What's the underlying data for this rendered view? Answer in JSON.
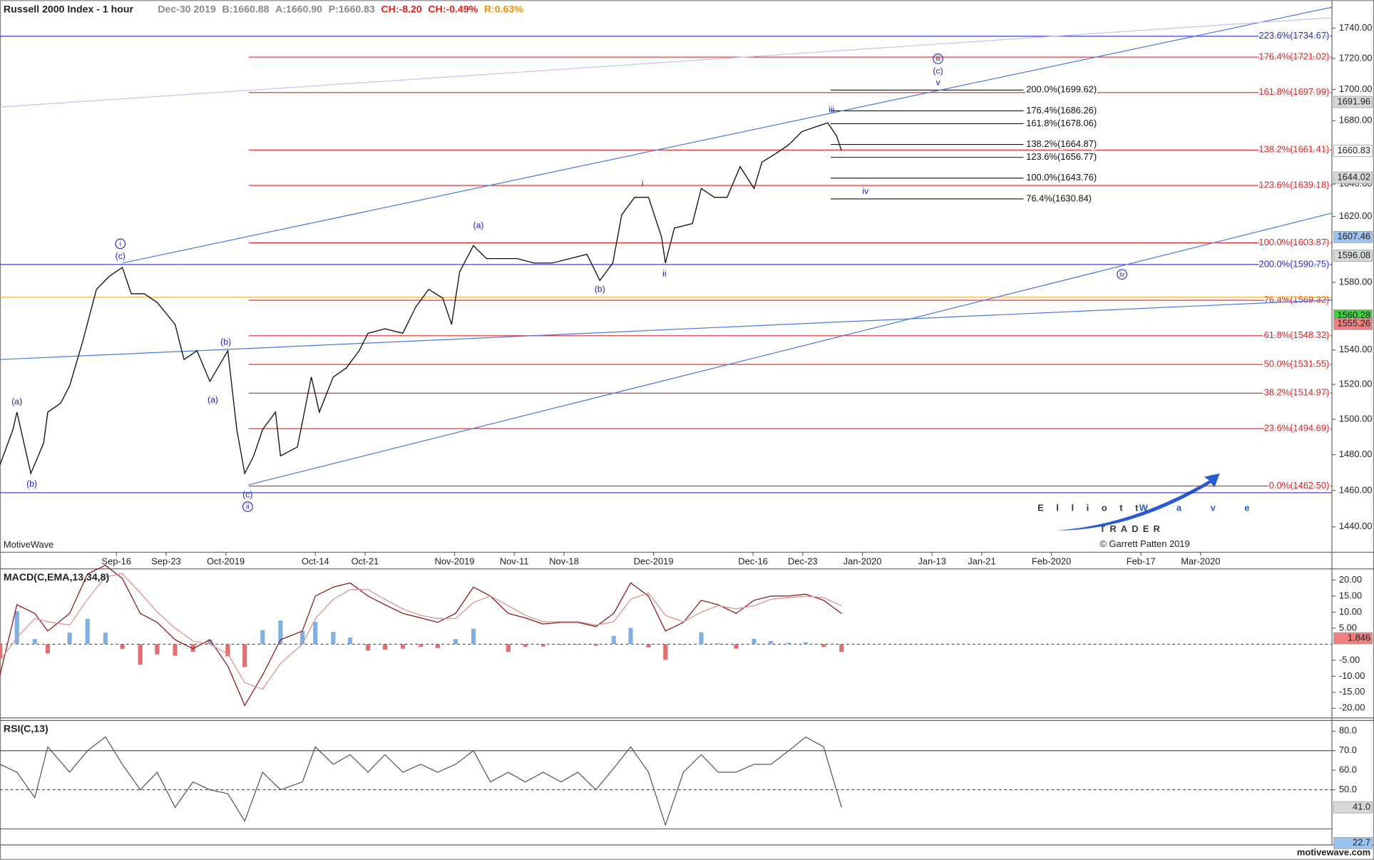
{
  "branding": {
    "platform": "MotiveWave",
    "copyright": "© Garrett Patten 2019",
    "site": "motivewave.com",
    "logo_a": "Elliott",
    "logo_b": "Wave",
    "logo_c": "TRADER"
  },
  "chart_data": [
    {
      "type": "line",
      "title": "Russell 2000 Index - 1 hour",
      "quote": [
        {
          "text": "Dec-30 2019",
          "color": "#888888"
        },
        {
          "text": "B:1660.88",
          "color": "#888888"
        },
        {
          "text": "A:1660.90",
          "color": "#888888"
        },
        {
          "text": "P:1660.83",
          "color": "#888888"
        },
        {
          "text": "CH:-8.20",
          "color": "#e02020"
        },
        {
          "text": "CH:-0.49%",
          "color": "#e02020"
        },
        {
          "text": "R:0.63%",
          "color": "#f09000"
        }
      ],
      "log_scale": true,
      "grid": false,
      "color": "#111111",
      "xlim": [
        -11.7,
        122.2
      ],
      "ylim": [
        1426.2,
        1758.6
      ],
      "xticks": [
        {
          "value": 0,
          "label": "Sep-16"
        },
        {
          "value": 5,
          "label": "Sep-23"
        },
        {
          "value": 11,
          "label": "Oct-2019"
        },
        {
          "value": 20,
          "label": "Oct-14"
        },
        {
          "value": 25,
          "label": "Oct-21"
        },
        {
          "value": 34,
          "label": "Nov-2019"
        },
        {
          "value": 40,
          "label": "Nov-11"
        },
        {
          "value": 45,
          "label": "Nov-18"
        },
        {
          "value": 54,
          "label": "Dec-2019"
        },
        {
          "value": 64,
          "label": "Dec-16"
        },
        {
          "value": 69,
          "label": "Dec-23"
        },
        {
          "value": 75,
          "label": "Jan-2020"
        },
        {
          "value": 82,
          "label": "Jan-13"
        },
        {
          "value": 87,
          "label": "Jan-21"
        },
        {
          "value": 94,
          "label": "Feb-2020"
        },
        {
          "value": 103,
          "label": "Feb-17"
        },
        {
          "value": 109,
          "label": "Mar-2020"
        }
      ],
      "yticks": [
        {
          "value": 1440,
          "label": "1440.00"
        },
        {
          "value": 1460,
          "label": "1460.00"
        },
        {
          "value": 1480,
          "label": "1480.00"
        },
        {
          "value": 1500,
          "label": "1500.00"
        },
        {
          "value": 1520,
          "label": "1520.00"
        },
        {
          "value": 1540,
          "label": "1540.00"
        },
        {
          "value": 1580,
          "label": "1580.00"
        },
        {
          "value": 1620,
          "label": "1620.00"
        },
        {
          "value": 1640,
          "label": "1640.00"
        },
        {
          "value": 1680,
          "label": "1680.00"
        },
        {
          "value": 1700,
          "label": "1700.00"
        },
        {
          "value": 1720,
          "label": "1720.00"
        },
        {
          "value": 1740,
          "label": "1740.00"
        }
      ],
      "x": [
        -11.7,
        -10.4,
        -10.0,
        -8.6,
        -7.3,
        -6.9,
        -5.6,
        -4.7,
        -3.4,
        -2.0,
        -0.7,
        0.6,
        1.5,
        2.8,
        4.1,
        5.9,
        6.8,
        8.1,
        9.4,
        11.2,
        12.1,
        12.9,
        13.8,
        14.7,
        16.0,
        16.5,
        18.2,
        19.6,
        20.4,
        21.8,
        23.1,
        24.4,
        25.3,
        27.0,
        28.8,
        30.1,
        31.4,
        32.8,
        33.7,
        34.5,
        35.9,
        37.2,
        38.5,
        40.3,
        42.0,
        43.8,
        45.6,
        47.3,
        48.6,
        49.9,
        50.8,
        52.1,
        53.5,
        54.8,
        55.2,
        56.1,
        57.9,
        58.8,
        60.1,
        61.4,
        62.7,
        64.1,
        64.9,
        66.3,
        67.6,
        68.9,
        70.2,
        71.5,
        72.4,
        72.9
      ],
      "values": [
        1474.4,
        1494.2,
        1504.1,
        1469.5,
        1486.7,
        1504.1,
        1509.2,
        1519.2,
        1544.7,
        1575.8,
        1583.7,
        1589.0,
        1573.2,
        1573.2,
        1568.0,
        1555.0,
        1534.4,
        1539.5,
        1521.7,
        1539.5,
        1494.2,
        1469.5,
        1479.3,
        1494.2,
        1504.1,
        1479.3,
        1484.3,
        1524.3,
        1504.1,
        1524.3,
        1529.4,
        1539.5,
        1549.8,
        1552.4,
        1549.8,
        1565.4,
        1575.8,
        1570.6,
        1555.0,
        1586.3,
        1602.2,
        1594.3,
        1594.3,
        1594.3,
        1591.6,
        1591.6,
        1594.3,
        1596.9,
        1581.1,
        1591.6,
        1621.0,
        1631.8,
        1631.8,
        1607.6,
        1591.6,
        1612.9,
        1615.6,
        1637.3,
        1631.8,
        1631.8,
        1650.9,
        1637.3,
        1653.7,
        1659.2,
        1664.7,
        1673.0,
        1675.8,
        1678.6,
        1670.3,
        1660.83
      ],
      "level_sets": [
        {
          "color": "#e02020",
          "x_range": [
            13.3,
            122.2
          ],
          "label_side": "right",
          "levels": [
            {
              "value": 1721.02,
              "label": "176.4%(1721.02)"
            },
            {
              "value": 1697.99,
              "label": "161.8%(1697.99)"
            },
            {
              "value": 1661.41,
              "label": "138.2%(1661.41)"
            },
            {
              "value": 1639.18,
              "label": "123.6%(1639.18)"
            },
            {
              "value": 1603.87,
              "label": "100.0%(1603.87)"
            },
            {
              "value": 1569.32,
              "label": "76.4%(1569.32)"
            },
            {
              "value": 1548.32,
              "label": "61.8%(1548.32)"
            },
            {
              "value": 1531.55,
              "label": "50.0%(1531.55)"
            },
            {
              "value": 1514.97,
              "label": "38.2%(1514.97)"
            },
            {
              "value": 1494.69,
              "label": "23.6%(1494.69)"
            },
            {
              "value": 1462.5,
              "label": "0.0%(1462.50)"
            }
          ]
        },
        {
          "color": "#111111",
          "x_range": [
            71.8,
            91.2
          ],
          "label_side": "end",
          "levels": [
            {
              "value": 1699.62,
              "label": "200.0%(1699.62)"
            },
            {
              "value": 1686.26,
              "label": "176.4%(1686.26)"
            },
            {
              "value": 1678.06,
              "label": "161.8%(1678.06)"
            },
            {
              "value": 1664.87,
              "label": "138.2%(1664.87)"
            },
            {
              "value": 1656.77,
              "label": "123.6%(1656.77)"
            },
            {
              "value": 1643.76,
              "label": "100.0%(1643.76)"
            },
            {
              "value": 1630.84,
              "label": "76.4%(1630.84)"
            }
          ]
        },
        {
          "color": "#2a2ad0",
          "x_range": [
            -11.7,
            122.2
          ],
          "label_side": "right",
          "levels": [
            {
              "value": 1734.67,
              "label": "223.6%(1734.67)"
            },
            {
              "value": 1590.75,
              "label": "200.0%(1590.75)"
            },
            {
              "value": 1458.78
            }
          ]
        },
        {
          "color": "#f0b020",
          "x_range": [
            -11.7,
            122.2
          ],
          "label_side": "right",
          "levels": [
            {
              "value": 1571.1
            }
          ]
        }
      ],
      "trendlines": [
        {
          "color": "#4a7ae0",
          "x": [
            0.6,
            122.2
          ],
          "y": [
            1591.6,
            1753.9
          ]
        },
        {
          "color": "#4a7ae0",
          "x": [
            -11.7,
            122.2
          ],
          "y": [
            1534.4,
            1569.5
          ]
        },
        {
          "color": "#4a7ae0",
          "x": [
            13.3,
            122.2
          ],
          "y": [
            1463.2,
            1622.1
          ]
        },
        {
          "color": "#c8c0f0",
          "x": [
            -11.7,
            122.2
          ],
          "y": [
            1688.7,
            1747.0
          ]
        }
      ],
      "wave_color": "#2020c0",
      "waves": [
        {
          "text": "(a)",
          "x": -10.0,
          "y": 1510.1,
          "circled": false
        },
        {
          "text": "(b)",
          "x": -8.5,
          "y": 1463.7,
          "circled": false
        },
        {
          "text": "i",
          "x": 0.4,
          "y": 1603.3,
          "circled": true
        },
        {
          "text": "(c)",
          "x": 0.4,
          "y": 1595.9,
          "circled": false
        },
        {
          "text": "(b)",
          "x": 11.0,
          "y": 1544.7,
          "circled": false
        },
        {
          "text": "(a)",
          "x": 9.7,
          "y": 1511.2,
          "circled": false
        },
        {
          "text": "(c)",
          "x": 13.2,
          "y": 1457.8,
          "circled": false
        },
        {
          "text": "ii",
          "x": 13.2,
          "y": 1451.1,
          "circled": true
        },
        {
          "text": "(a)",
          "x": 36.4,
          "y": 1614.5,
          "circled": false
        },
        {
          "text": "(b)",
          "x": 48.6,
          "y": 1575.8,
          "circled": false
        },
        {
          "text": "i",
          "x": 52.9,
          "y": 1640.5,
          "circled": false
        },
        {
          "text": "ii",
          "x": 55.1,
          "y": 1585.3,
          "circled": false
        },
        {
          "text": "iii",
          "x": 71.9,
          "y": 1687.0,
          "circled": false
        },
        {
          "text": "iv",
          "x": 75.3,
          "y": 1635.6,
          "circled": false
        },
        {
          "text": "iii",
          "x": 82.6,
          "y": 1719.9,
          "circled": true
        },
        {
          "text": "(c)",
          "x": 82.6,
          "y": 1711.9,
          "circled": false
        },
        {
          "text": "v",
          "x": 82.6,
          "y": 1704.5,
          "circled": false
        },
        {
          "text": "iv",
          "x": 101.1,
          "y": 1584.8,
          "circled": true
        }
      ],
      "price_markers": [
        {
          "value": 1691.96,
          "color": "#d8d8d8"
        },
        {
          "value": 1660.83,
          "color": "#ffffff"
        },
        {
          "value": 1644.02,
          "color": "#d8d8d8"
        },
        {
          "value": 1607.46,
          "color": "#9cc3f0"
        },
        {
          "value": 1596.08,
          "color": "#d8d8d8"
        },
        {
          "value": 1560.28,
          "color": "#40d040"
        },
        {
          "value": 1555.26,
          "color": "#f08080"
        }
      ]
    },
    {
      "type": "line",
      "title": "MACD(C,EMA,13,34,8)",
      "xlim": [
        -11.7,
        122.2
      ],
      "ylim": [
        -22.7,
        23.2
      ],
      "yticks": [
        {
          "value": 20,
          "label": "20.00"
        },
        {
          "value": 15,
          "label": "15.00"
        },
        {
          "value": 10,
          "label": "10.00"
        },
        {
          "value": 5,
          "label": "5.00"
        },
        {
          "value": -5,
          "label": "-5.00"
        },
        {
          "value": -10,
          "label": "-10.00"
        },
        {
          "value": -15,
          "label": "-15.00"
        },
        {
          "value": -20,
          "label": "-20.00"
        }
      ],
      "reference_lines": [
        0
      ],
      "x": [
        -11.7,
        -10.0,
        -8.2,
        -6.9,
        -4.7,
        -2.9,
        -1.1,
        0.6,
        2.4,
        4.1,
        5.9,
        7.7,
        9.4,
        11.2,
        12.9,
        14.7,
        16.5,
        18.7,
        20.0,
        21.8,
        23.5,
        25.3,
        27.0,
        28.8,
        30.6,
        32.3,
        34.1,
        35.9,
        37.6,
        39.4,
        41.1,
        42.9,
        44.7,
        46.4,
        48.2,
        50.0,
        51.7,
        53.5,
        55.2,
        57.0,
        58.8,
        60.5,
        62.3,
        64.1,
        65.8,
        67.6,
        69.3,
        71.1,
        72.9
      ],
      "series": [
        {
          "color": "#8b1010",
          "values": [
            -9.6,
            12.3,
            9.6,
            4.1,
            9.6,
            21.9,
            24.6,
            20.5,
            9.6,
            6.8,
            1.4,
            -1.4,
            1.4,
            -6.8,
            -19.1,
            -9.6,
            1.4,
            4.1,
            15.0,
            17.8,
            19.1,
            15.0,
            12.3,
            9.6,
            8.2,
            6.8,
            9.6,
            17.8,
            15.0,
            9.6,
            8.2,
            6.3,
            6.8,
            6.8,
            5.5,
            9.6,
            19.1,
            15.0,
            4.1,
            6.8,
            13.7,
            12.3,
            9.6,
            13.7,
            15.0,
            15.0,
            15.6,
            13.7,
            9.6
          ]
        },
        {
          "color": "#d89090",
          "values": [
            -5,
            2,
            8,
            7,
            6,
            14,
            21,
            22,
            16,
            10,
            5,
            1,
            0,
            -3,
            -12,
            -14,
            -6,
            0,
            8,
            14,
            17,
            17,
            14,
            11,
            9,
            8,
            8,
            13,
            15,
            12,
            9,
            7,
            7,
            7,
            6,
            7,
            14,
            16,
            9,
            7,
            10,
            12,
            11,
            12,
            14,
            14.5,
            15,
            14.5,
            12
          ]
        }
      ],
      "histogram": {
        "up_color": "#80b0e0",
        "down_color": "#e07070",
        "values": [
          -4.6,
          10.3,
          1.6,
          -2.9,
          3.6,
          7.9,
          3.6,
          -1.5,
          -6.4,
          -3.2,
          -3.6,
          -2.4,
          1.4,
          -3.8,
          -7.1,
          4.4,
          7.4,
          4.1,
          7.0,
          3.8,
          2.1,
          -2.0,
          -1.7,
          -1.4,
          -0.8,
          -1.2,
          1.6,
          4.8,
          0,
          -2.4,
          -0.8,
          -0.7,
          -0.2,
          -0.2,
          -0.5,
          2.6,
          5.1,
          -1.0,
          -4.9,
          -0.2,
          3.7,
          0.3,
          -1.4,
          1.7,
          1.0,
          0.5,
          0.6,
          -0.8,
          -2.4
        ]
      },
      "markers": [
        {
          "value": 1.846,
          "color": "#f08080"
        }
      ]
    },
    {
      "type": "line",
      "title": "RSI(C,13)",
      "xlim": [
        -11.7,
        122.2
      ],
      "ylim": [
        22.2,
        85.0
      ],
      "yticks": [
        {
          "value": 80,
          "label": "80.0"
        },
        {
          "value": 70,
          "label": "70.0"
        },
        {
          "value": 60,
          "label": "60.0"
        },
        {
          "value": 50,
          "label": "50.0"
        }
      ],
      "reference_lines": [
        70,
        50,
        30
      ],
      "x": [
        -11.7,
        -10.0,
        -8.2,
        -6.9,
        -4.7,
        -2.9,
        -1.1,
        0.6,
        2.4,
        4.1,
        5.9,
        7.7,
        9.4,
        11.2,
        12.9,
        14.7,
        16.5,
        18.7,
        20.0,
        21.8,
        23.5,
        25.3,
        27.0,
        28.8,
        30.6,
        32.3,
        34.1,
        35.9,
        37.6,
        39.4,
        41.1,
        42.9,
        44.7,
        46.4,
        48.2,
        50.0,
        51.7,
        53.5,
        55.2,
        57.0,
        58.8,
        60.5,
        62.3,
        64.1,
        65.8,
        67.6,
        69.3,
        71.1,
        72.9
      ],
      "series": [
        {
          "color": "#555555",
          "values": [
            63,
            59,
            46,
            72,
            59,
            70,
            77,
            63,
            50,
            59,
            41,
            54,
            50,
            48,
            34,
            59,
            50,
            54,
            72,
            63,
            68,
            59,
            68,
            59,
            63,
            59,
            63,
            70,
            54,
            59,
            54,
            59,
            54,
            59,
            50,
            61,
            72,
            59,
            32,
            59,
            68,
            59,
            59,
            63,
            63,
            70,
            77,
            72,
            41.0
          ]
        }
      ],
      "markers": [
        {
          "value": 41,
          "label": "41.0",
          "color": "#d8d8d8"
        },
        {
          "value": 22.7,
          "color": "#9cc3f0"
        }
      ]
    }
  ]
}
